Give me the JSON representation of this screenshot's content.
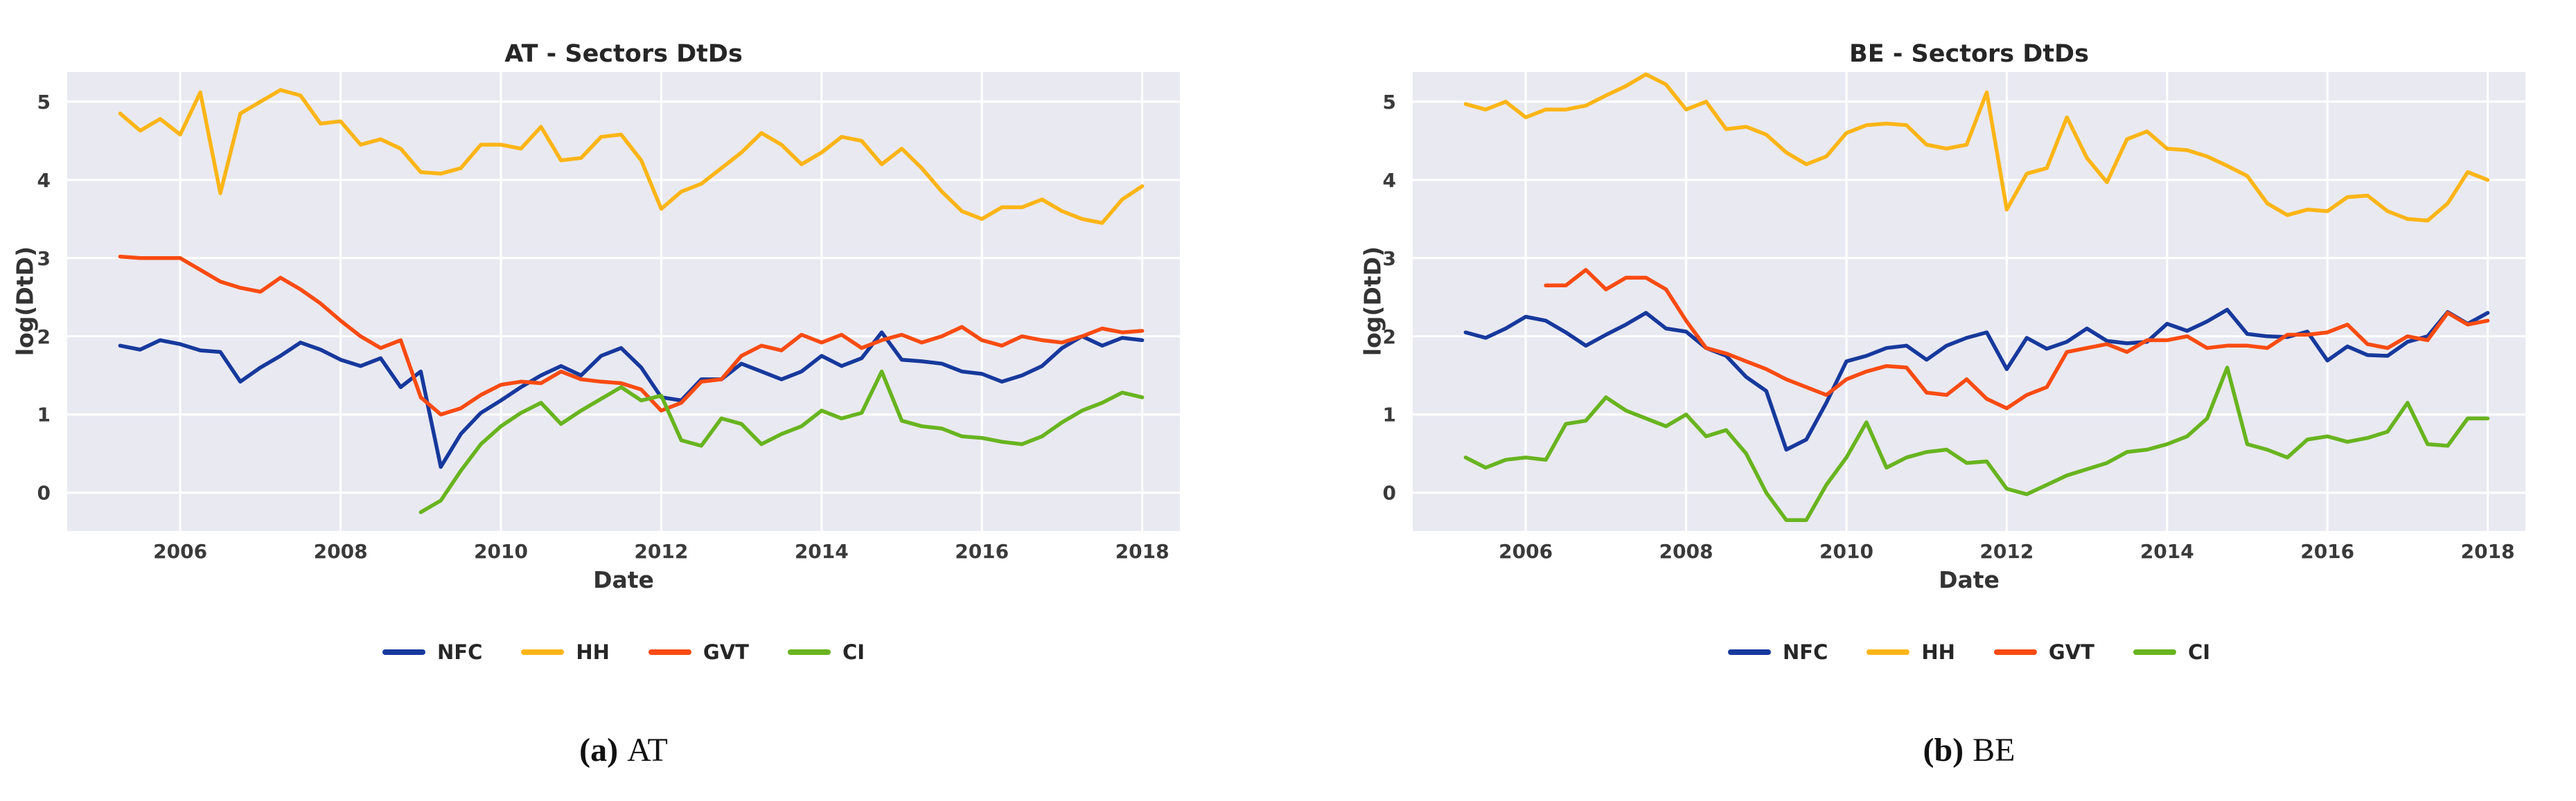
{
  "colors": {
    "nfc_blue": "#17399c",
    "hh_yellow": "#fcb517",
    "gvt_red": "#f94b11",
    "ci_green": "#68b41f",
    "plot_background": "#e9e9f2",
    "gridline": "#ffffff",
    "tick_text": "#3a3a3a",
    "title_text": "#262626"
  },
  "captions": [
    {
      "index": "(a)",
      "label": "AT"
    },
    {
      "index": "(b)",
      "label": "BE"
    }
  ],
  "chart_data": [
    {
      "type": "line",
      "title": "AT - Sectors DtDs",
      "xlabel": "Date",
      "ylabel": "log(DtD)",
      "xlim": [
        2004.59,
        2018.47
      ],
      "ylim": [
        -0.49,
        5.38
      ],
      "xticks": [
        2006,
        2008,
        2010,
        2012,
        2014,
        2016,
        2018
      ],
      "yticks": [
        0,
        1,
        2,
        3,
        4,
        5
      ],
      "grid": true,
      "legend_position": "bottom",
      "series": [
        {
          "name": "NFC",
          "color": "#17399c",
          "x_start": 2005.25,
          "x_step": 0.25,
          "values": [
            1.88,
            1.83,
            1.95,
            1.9,
            1.82,
            1.8,
            1.42,
            1.6,
            1.75,
            1.92,
            1.83,
            1.7,
            1.62,
            1.72,
            1.35,
            1.55,
            0.33,
            0.75,
            1.02,
            1.18,
            1.35,
            1.5,
            1.62,
            1.5,
            1.75,
            1.85,
            1.6,
            1.22,
            1.18,
            1.45,
            1.45,
            1.65,
            1.55,
            1.45,
            1.55,
            1.75,
            1.62,
            1.72,
            2.05,
            1.7,
            1.68,
            1.65,
            1.55,
            1.52,
            1.42,
            1.5,
            1.62,
            1.85,
            2.0,
            1.88,
            1.98,
            1.95
          ]
        },
        {
          "name": "HH",
          "color": "#fcb517",
          "x_start": 2005.25,
          "x_step": 0.25,
          "values": [
            4.85,
            4.63,
            4.78,
            4.58,
            5.12,
            3.83,
            4.85,
            5.0,
            5.15,
            5.08,
            4.72,
            4.75,
            4.45,
            4.52,
            4.4,
            4.1,
            4.08,
            4.15,
            4.45,
            4.45,
            4.4,
            4.68,
            4.25,
            4.28,
            4.55,
            4.58,
            4.25,
            3.63,
            3.85,
            3.95,
            4.15,
            4.35,
            4.6,
            4.45,
            4.2,
            4.35,
            4.55,
            4.5,
            4.2,
            4.4,
            4.15,
            3.85,
            3.6,
            3.5,
            3.65,
            3.65,
            3.75,
            3.6,
            3.5,
            3.45,
            3.75,
            3.92
          ]
        },
        {
          "name": "GVT",
          "color": "#f94b11",
          "x_start": 2005.25,
          "x_step": 0.25,
          "values": [
            3.02,
            3.0,
            3.0,
            3.0,
            2.85,
            2.7,
            2.62,
            2.57,
            2.75,
            2.6,
            2.42,
            2.2,
            2.0,
            1.85,
            1.95,
            1.22,
            1.0,
            1.08,
            1.25,
            1.38,
            1.42,
            1.4,
            1.55,
            1.45,
            1.42,
            1.4,
            1.32,
            1.05,
            1.15,
            1.42,
            1.45,
            1.75,
            1.88,
            1.82,
            2.02,
            1.92,
            2.02,
            1.85,
            1.95,
            2.02,
            1.92,
            2.0,
            2.12,
            1.95,
            1.88,
            2.0,
            1.95,
            1.92,
            2.0,
            2.1,
            2.05,
            2.07
          ]
        },
        {
          "name": "CI",
          "color": "#68b41f",
          "x_start": 2009.0,
          "x_step": 0.25,
          "values": [
            -0.25,
            -0.1,
            0.28,
            0.62,
            0.85,
            1.02,
            1.15,
            0.88,
            1.05,
            1.2,
            1.35,
            1.18,
            1.24,
            0.67,
            0.6,
            0.95,
            0.88,
            0.62,
            0.75,
            0.85,
            1.05,
            0.95,
            1.02,
            1.55,
            0.92,
            0.85,
            0.82,
            0.72,
            0.7,
            0.65,
            0.62,
            0.72,
            0.9,
            1.05,
            1.15,
            1.28,
            1.22
          ]
        }
      ]
    },
    {
      "type": "line",
      "title": "BE - Sectors DtDs",
      "xlabel": "Date",
      "ylabel": "log(DtD)",
      "xlim": [
        2004.59,
        2018.47
      ],
      "ylim": [
        -0.49,
        5.38
      ],
      "xticks": [
        2006,
        2008,
        2010,
        2012,
        2014,
        2016,
        2018
      ],
      "yticks": [
        0,
        1,
        2,
        3,
        4,
        5
      ],
      "grid": true,
      "legend_position": "bottom",
      "series": [
        {
          "name": "NFC",
          "color": "#17399c",
          "x_start": 2005.25,
          "x_step": 0.25,
          "values": [
            2.05,
            1.98,
            2.1,
            2.25,
            2.2,
            2.05,
            1.88,
            2.02,
            2.15,
            2.3,
            2.1,
            2.06,
            1.85,
            1.75,
            1.48,
            1.3,
            0.55,
            0.68,
            1.15,
            1.68,
            1.75,
            1.85,
            1.88,
            1.7,
            1.88,
            1.98,
            2.05,
            1.58,
            1.98,
            1.84,
            1.93,
            2.1,
            1.94,
            1.91,
            1.93,
            2.16,
            2.07,
            2.19,
            2.34,
            2.03,
            2.0,
            1.99,
            2.06,
            1.69,
            1.87,
            1.76,
            1.75,
            1.93,
            2.0,
            2.31,
            2.16,
            2.3
          ]
        },
        {
          "name": "HH",
          "color": "#fcb517",
          "x_start": 2005.25,
          "x_step": 0.25,
          "values": [
            4.97,
            4.9,
            5.0,
            4.8,
            4.9,
            4.9,
            4.95,
            5.08,
            5.2,
            5.35,
            5.22,
            4.9,
            5.0,
            4.65,
            4.68,
            4.58,
            4.35,
            4.2,
            4.3,
            4.6,
            4.7,
            4.72,
            4.7,
            4.45,
            4.4,
            4.45,
            5.12,
            3.62,
            4.08,
            4.15,
            4.8,
            4.28,
            3.97,
            4.52,
            4.62,
            4.4,
            4.38,
            4.3,
            4.18,
            4.05,
            3.7,
            3.55,
            3.62,
            3.6,
            3.78,
            3.8,
            3.6,
            3.5,
            3.48,
            3.7,
            4.1,
            4.0
          ]
        },
        {
          "name": "GVT",
          "color": "#f94b11",
          "x_start": 2006.25,
          "x_step": 0.25,
          "values": [
            2.65,
            2.65,
            2.85,
            2.6,
            2.75,
            2.75,
            2.6,
            2.2,
            1.85,
            1.78,
            1.68,
            1.58,
            1.45,
            1.35,
            1.25,
            1.45,
            1.55,
            1.62,
            1.6,
            1.28,
            1.25,
            1.45,
            1.2,
            1.08,
            1.25,
            1.35,
            1.8,
            1.85,
            1.9,
            1.8,
            1.95,
            1.95,
            2.0,
            1.85,
            1.88,
            1.88,
            1.85,
            2.02,
            2.02,
            2.05,
            2.15,
            1.9,
            1.85,
            2.0,
            1.95,
            2.3,
            2.15,
            2.2
          ]
        },
        {
          "name": "CI",
          "color": "#68b41f",
          "x_start": 2005.25,
          "x_step": 0.25,
          "values": [
            0.45,
            0.32,
            0.42,
            0.45,
            0.42,
            0.88,
            0.92,
            1.22,
            1.05,
            0.95,
            0.85,
            1.0,
            0.72,
            0.8,
            0.5,
            0.0,
            -0.35,
            -0.35,
            0.1,
            0.45,
            0.9,
            0.32,
            0.45,
            0.52,
            0.55,
            0.38,
            0.4,
            0.05,
            -0.02,
            0.1,
            0.22,
            0.3,
            0.38,
            0.52,
            0.55,
            0.62,
            0.72,
            0.95,
            1.6,
            0.62,
            0.55,
            0.45,
            0.68,
            0.72,
            0.65,
            0.7,
            0.78,
            1.15,
            0.62,
            0.6,
            0.95,
            0.95
          ]
        }
      ]
    }
  ]
}
